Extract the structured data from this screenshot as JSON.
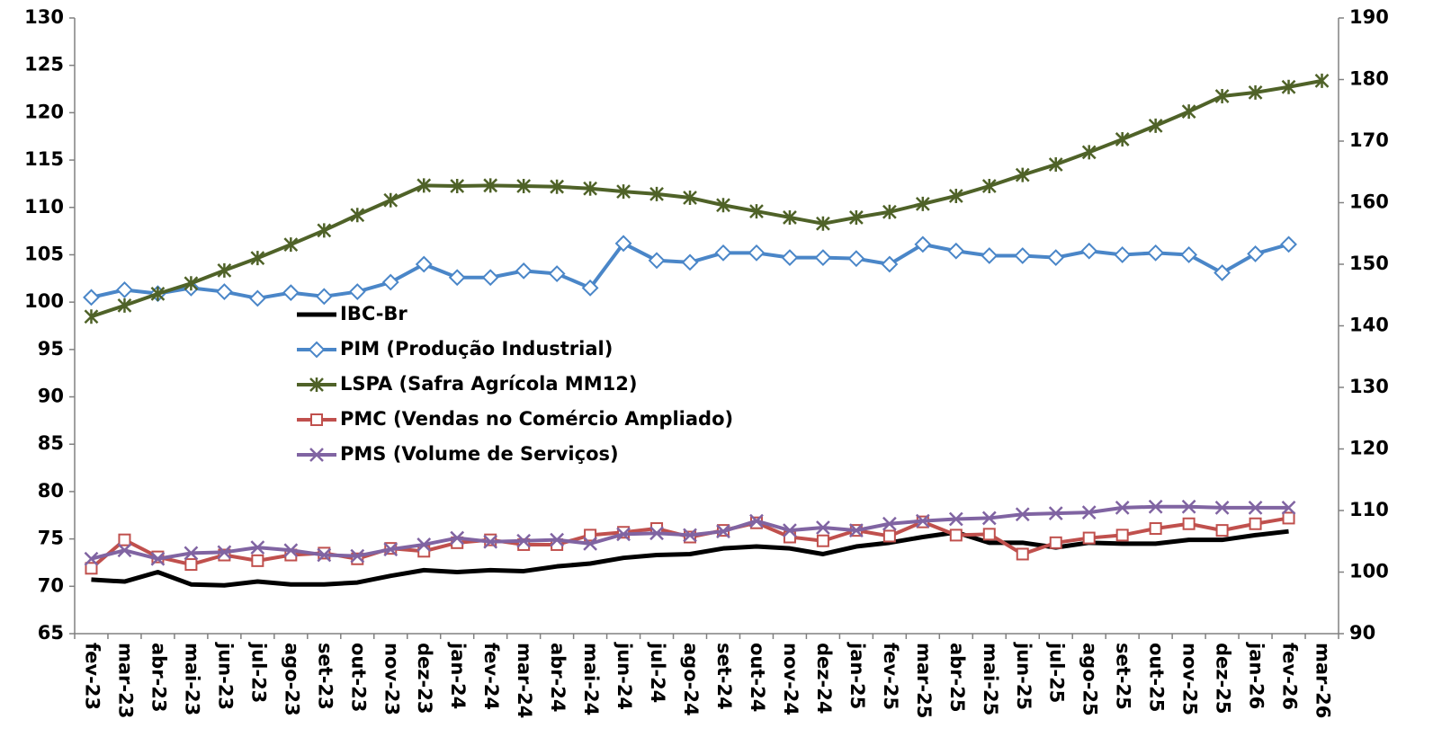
{
  "chart_data": {
    "type": "line",
    "categories": [
      "fev-23",
      "mar-23",
      "abr-23",
      "mai-23",
      "jun-23",
      "jul-23",
      "ago-23",
      "set-23",
      "out-23",
      "nov-23",
      "dez-23",
      "jan-24",
      "fev-24",
      "mar-24",
      "abr-24",
      "mai-24",
      "jun-24",
      "jul-24",
      "ago-24",
      "set-24",
      "out-24",
      "nov-24",
      "dez-24",
      "jan-25",
      "fev-25",
      "mar-25",
      "abr-25",
      "mai-25",
      "jun-25",
      "jul-25",
      "ago-25",
      "set-25",
      "out-25",
      "nov-25",
      "dez-25",
      "jan-26",
      "fev-26",
      "mar-26"
    ],
    "ylim": [
      65,
      130
    ],
    "yticks": [
      65,
      70,
      75,
      80,
      85,
      90,
      95,
      100,
      105,
      110,
      115,
      120,
      125,
      130
    ],
    "y2lim": [
      90,
      190
    ],
    "y2ticks": [
      90,
      100,
      110,
      120,
      130,
      140,
      150,
      160,
      170,
      180,
      190
    ],
    "legend": "center-left",
    "series": [
      {
        "name": "IBC-Br",
        "color": "#000000",
        "marker": "none",
        "axis": "y",
        "values": [
          70.7,
          70.5,
          71.5,
          70.2,
          70.1,
          70.5,
          70.2,
          70.2,
          70.4,
          71.1,
          71.7,
          71.5,
          71.7,
          71.6,
          72.1,
          72.4,
          73.0,
          73.3,
          73.4,
          74.0,
          74.2,
          74.0,
          73.4,
          74.2,
          74.6,
          75.2,
          75.7,
          74.6,
          74.6,
          74.1,
          74.6,
          74.5,
          74.5,
          74.9,
          74.9,
          75.4,
          75.8,
          null
        ]
      },
      {
        "name": "PIM (Produção Industrial)",
        "color": "#4a86c8",
        "marker": "diamond",
        "axis": "y",
        "values": [
          100.5,
          101.3,
          100.9,
          101.5,
          101.1,
          100.4,
          101.0,
          100.6,
          101.1,
          102.1,
          104.0,
          102.6,
          102.6,
          103.3,
          103.0,
          101.5,
          106.2,
          104.4,
          104.2,
          105.2,
          105.2,
          104.7,
          104.7,
          104.6,
          104.0,
          106.1,
          105.4,
          104.9,
          104.9,
          104.7,
          105.4,
          105.0,
          105.2,
          105.0,
          103.1,
          105.1,
          106.1,
          null
        ]
      },
      {
        "name": "LSPA (Safra Agrícola MM12)",
        "color": "#4f6228",
        "marker": "star",
        "axis": "y2",
        "values": [
          141.5,
          143.3,
          145.2,
          146.9,
          149.0,
          151.0,
          153.2,
          155.5,
          158.0,
          160.4,
          162.8,
          162.7,
          162.8,
          162.7,
          162.6,
          162.3,
          161.8,
          161.4,
          160.8,
          159.6,
          158.6,
          157.6,
          156.6,
          157.6,
          158.5,
          159.8,
          161.1,
          162.7,
          164.5,
          166.2,
          168.2,
          170.3,
          172.5,
          174.8,
          177.3,
          177.9,
          178.8,
          179.8
        ]
      },
      {
        "name": "PMC (Vendas no Comércio Ampliado)",
        "color": "#c0504d",
        "marker": "square",
        "axis": "y",
        "values": [
          71.9,
          74.9,
          73.1,
          72.3,
          73.3,
          72.7,
          73.3,
          73.5,
          72.9,
          74.0,
          73.7,
          74.6,
          74.9,
          74.4,
          74.4,
          75.4,
          75.7,
          76.1,
          75.2,
          75.9,
          76.7,
          75.2,
          74.8,
          75.9,
          75.3,
          76.8,
          75.4,
          75.5,
          73.4,
          74.6,
          75.1,
          75.4,
          76.1,
          76.6,
          75.9,
          76.6,
          77.2,
          null
        ]
      },
      {
        "name": "PMS (Volume de Serviços)",
        "color": "#8064a2",
        "marker": "x",
        "axis": "y",
        "values": [
          72.9,
          73.8,
          72.9,
          73.5,
          73.6,
          74.1,
          73.8,
          73.3,
          73.2,
          73.9,
          74.4,
          75.1,
          74.7,
          74.8,
          74.9,
          74.5,
          75.5,
          75.6,
          75.4,
          75.8,
          76.9,
          75.9,
          76.2,
          75.9,
          76.6,
          76.9,
          77.1,
          77.2,
          77.6,
          77.7,
          77.8,
          78.3,
          78.4,
          78.4,
          78.3,
          78.3,
          78.3,
          null
        ]
      }
    ]
  }
}
